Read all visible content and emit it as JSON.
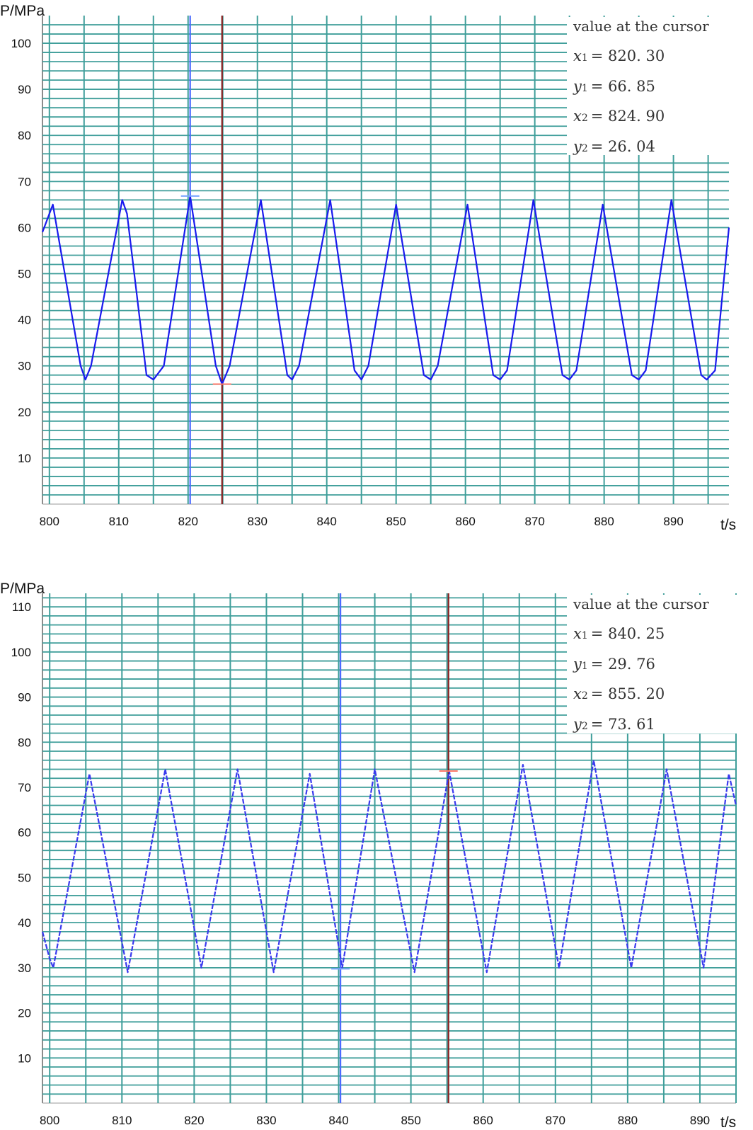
{
  "chart_data": [
    {
      "type": "line",
      "ylabel": "P/MPa",
      "xlabel": "t/s",
      "xlim": [
        799,
        898
      ],
      "ylim": [
        0,
        106
      ],
      "x_ticks": [
        800,
        810,
        820,
        830,
        840,
        850,
        860,
        870,
        880,
        890
      ],
      "y_ticks": [
        10,
        20,
        30,
        40,
        50,
        60,
        70,
        80,
        90,
        100
      ],
      "grid": true,
      "series": [
        {
          "color": "#1a1aee",
          "x": [
            799,
            800.5,
            804.5,
            805.2,
            806,
            810.5,
            811.2,
            814,
            815,
            816.5,
            820.3,
            824,
            824.9,
            826,
            830.5,
            834.3,
            835,
            836,
            840.5,
            844,
            845,
            846,
            850,
            854,
            855,
            856,
            860.3,
            864,
            865,
            866,
            869.8,
            874,
            875,
            876,
            879.8,
            884,
            885,
            886,
            889.7,
            894,
            894.8,
            896,
            898
          ],
          "y": [
            59,
            65,
            30,
            27,
            30,
            66,
            63,
            28,
            27,
            30,
            66.85,
            30,
            26.04,
            30,
            66,
            28,
            27,
            30,
            66,
            29,
            27,
            30,
            65,
            28,
            27,
            30,
            65,
            28,
            27,
            29,
            66,
            28,
            27,
            29,
            65,
            28,
            27,
            29,
            66,
            28,
            27,
            29,
            60
          ]
        }
      ],
      "cursors": [
        {
          "x": 820.3,
          "color": "#4a6bff"
        },
        {
          "x": 824.9,
          "color": "#8b2020"
        }
      ],
      "readout": {
        "title": "value at the cursor",
        "x1_label": "x",
        "x1_sub": "1",
        "x1_value": "= 820. 30",
        "y1_label": "y",
        "y1_sub": "1",
        "y1_value": "= 66. 85",
        "x2_label": "x",
        "x2_sub": "2",
        "x2_value": "= 824. 90",
        "y2_label": "y",
        "y2_sub": "2",
        "y2_value": "= 26. 04"
      }
    },
    {
      "type": "line",
      "ylabel": "P/MPa",
      "xlabel": "t/s",
      "xlim": [
        799,
        895
      ],
      "ylim": [
        0,
        113
      ],
      "x_ticks": [
        800,
        810,
        820,
        830,
        840,
        850,
        860,
        870,
        880,
        890
      ],
      "y_ticks": [
        10,
        20,
        30,
        40,
        50,
        60,
        70,
        80,
        90,
        100,
        110
      ],
      "grid": true,
      "series": [
        {
          "color": "#3a3aee",
          "x": [
            799,
            800,
            800.5,
            805.5,
            810.8,
            816,
            821,
            826,
            831,
            836,
            840.5,
            845,
            850.5,
            855.3,
            860.5,
            865.5,
            870.5,
            875.3,
            880.5,
            885.4,
            890.5,
            894,
            895
          ],
          "y": [
            38,
            32,
            30,
            73,
            29,
            74,
            30,
            74,
            29,
            73,
            30,
            74,
            29,
            73.6,
            29,
            75,
            30,
            76,
            30,
            74,
            30,
            73,
            66
          ]
        }
      ],
      "cursors": [
        {
          "x": 840.25,
          "color": "#4a6bff"
        },
        {
          "x": 855.2,
          "color": "#8b2020"
        }
      ],
      "readout": {
        "title": "value at the cursor",
        "x1_label": "x",
        "x1_sub": "1",
        "x1_value": "= 840. 25",
        "y1_label": "y",
        "y1_sub": "1",
        "y1_value": "= 29. 76",
        "x2_label": "x",
        "x2_sub": "2",
        "x2_value": "= 855. 20",
        "y2_label": "y",
        "y2_sub": "2",
        "y2_value": "= 73. 61"
      }
    }
  ]
}
